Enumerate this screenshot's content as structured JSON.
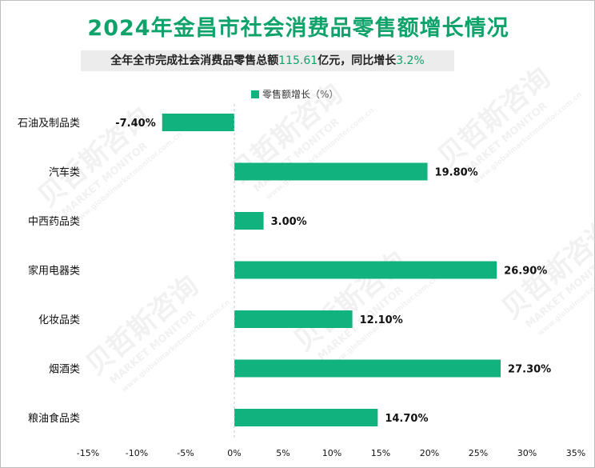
{
  "header": {
    "title": "2024年金昌市社会消费品零售额增长情况",
    "subtitle_prefix": "全年全市完成社会消费品零售总额",
    "subtitle_amount": "115.61",
    "subtitle_mid": "亿元，同比增长",
    "subtitle_growth": "3.2%"
  },
  "watermark": {
    "text_cn": "贝哲斯咨询",
    "text_en": "MARKET MONITOR",
    "text_url": "www.globalmarketmonitor.com.cn"
  },
  "chart_data": {
    "type": "bar",
    "orientation": "horizontal",
    "title": "2024年金昌市社会消费品零售额增长情况",
    "legend": [
      "零售额增长（%）"
    ],
    "legend_position": "top",
    "categories": [
      "石油及制品类",
      "汽车类",
      "中西药品类",
      "家用电器类",
      "化妆品类",
      "烟酒类",
      "粮油食品类"
    ],
    "values": [
      -7.4,
      19.8,
      3.0,
      26.9,
      12.1,
      27.3,
      14.7
    ],
    "value_labels": [
      "-7.40%",
      "19.80%",
      "3.00%",
      "26.90%",
      "12.10%",
      "27.30%",
      "14.70%"
    ],
    "xlim": [
      -15,
      35
    ],
    "xticks": [
      -15,
      -10,
      -5,
      0,
      5,
      10,
      15,
      20,
      25,
      30,
      35
    ],
    "xtick_labels": [
      "-15%",
      "-10%",
      "-5%",
      "0%",
      "5%",
      "10%",
      "15%",
      "20%",
      "25%",
      "30%",
      "35%"
    ],
    "grid": false,
    "bar_color": "#12b27e"
  }
}
